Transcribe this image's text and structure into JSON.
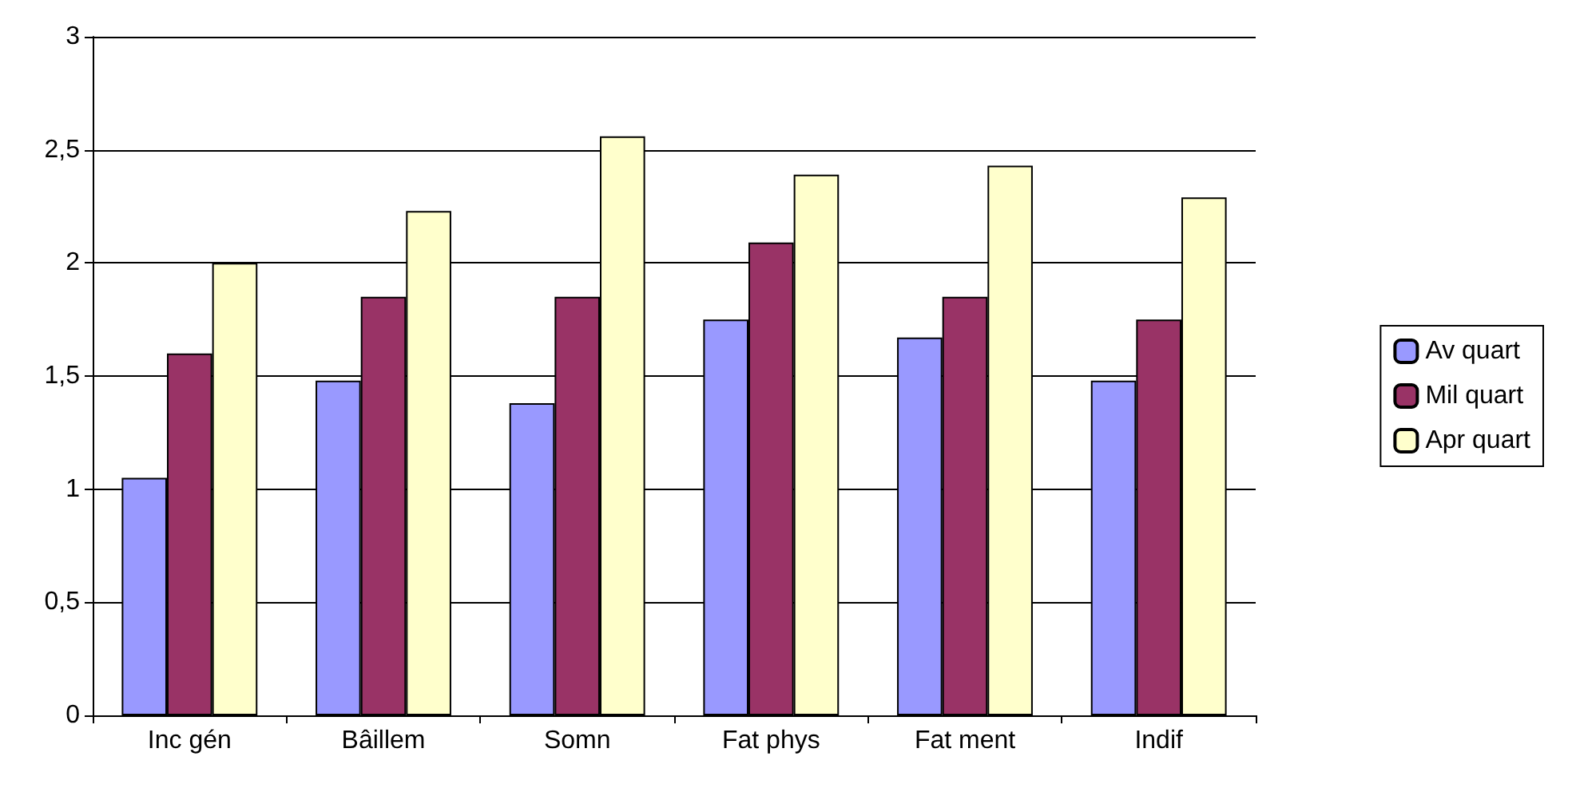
{
  "chart_data": {
    "type": "bar",
    "categories": [
      "Inc gén",
      "Bâillem",
      "Somn",
      "Fat phys",
      "Fat ment",
      "Indif"
    ],
    "series": [
      {
        "name": "Av quart",
        "color": "#9999ff",
        "values": [
          1.05,
          1.48,
          1.38,
          1.75,
          1.67,
          1.48
        ]
      },
      {
        "name": "Mil quart",
        "color": "#993366",
        "values": [
          1.6,
          1.85,
          1.85,
          2.09,
          1.85,
          1.75
        ]
      },
      {
        "name": "Apr quart",
        "color": "#ffffcc",
        "values": [
          2.0,
          2.23,
          2.56,
          2.39,
          2.43,
          2.29
        ]
      }
    ],
    "ylim": [
      0,
      3
    ],
    "yticks": [
      0,
      {
        "value": 0.5,
        "label": "0,5"
      },
      1,
      {
        "value": 1.5,
        "label": "1,5"
      },
      2,
      {
        "value": 2.5,
        "label": "2,5"
      },
      3
    ],
    "grid": "y",
    "legend": "right"
  }
}
